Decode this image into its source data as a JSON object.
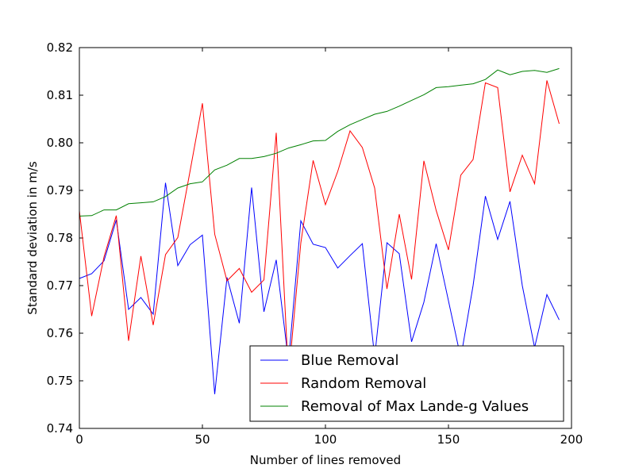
{
  "chart_data": {
    "type": "line",
    "title": "",
    "xlabel": "Number of lines removed",
    "ylabel": "Standard deviation in m/s",
    "xlim": [
      0,
      200
    ],
    "ylim": [
      0.74,
      0.82
    ],
    "xticks": [
      "0",
      "50",
      "100",
      "150",
      "200"
    ],
    "yticks": [
      "0.74",
      "0.75",
      "0.76",
      "0.77",
      "0.78",
      "0.79",
      "0.80",
      "0.81",
      "0.82"
    ],
    "grid": false,
    "legend_position": "lower-right",
    "x": [
      0,
      5,
      10,
      15,
      20,
      25,
      30,
      35,
      40,
      45,
      50,
      55,
      60,
      65,
      70,
      75,
      80,
      85,
      90,
      95,
      100,
      105,
      110,
      115,
      120,
      125,
      130,
      135,
      140,
      145,
      150,
      155,
      160,
      165,
      170,
      175,
      180,
      185,
      190,
      195
    ],
    "series": [
      {
        "name": "Blue Removal",
        "color": "#0000ff",
        "values": [
          0.7715,
          0.7725,
          0.7752,
          0.7838,
          0.765,
          0.7675,
          0.764,
          0.7916,
          0.7742,
          0.7786,
          0.7806,
          0.7472,
          0.7717,
          0.7621,
          0.7906,
          0.7645,
          0.7754,
          0.754,
          0.7836,
          0.7787,
          0.778,
          0.7737,
          0.7763,
          0.7788,
          0.755,
          0.779,
          0.7767,
          0.7582,
          0.7665,
          0.7788,
          0.7668,
          0.7548,
          0.77,
          0.7888,
          0.7797,
          0.7877,
          0.77,
          0.757,
          0.7681,
          0.7628
        ]
      },
      {
        "name": "Random Removal",
        "color": "#ff0000",
        "values": [
          0.7857,
          0.7636,
          0.776,
          0.7847,
          0.7584,
          0.7762,
          0.7617,
          0.7765,
          0.7801,
          0.7941,
          0.8083,
          0.7808,
          0.771,
          0.7736,
          0.7686,
          0.7712,
          0.8021,
          0.7508,
          0.779,
          0.7963,
          0.787,
          0.794,
          0.8025,
          0.799,
          0.7905,
          0.7693,
          0.785,
          0.7713,
          0.7962,
          0.7858,
          0.7775,
          0.7932,
          0.7965,
          0.8126,
          0.8116,
          0.7897,
          0.7974,
          0.7914,
          0.8131,
          0.804
        ]
      },
      {
        "name": "Removal of Max Lande-g Values",
        "color": "#008000",
        "values": [
          0.7846,
          0.7847,
          0.7859,
          0.7859,
          0.7872,
          0.7874,
          0.7876,
          0.7887,
          0.7905,
          0.7914,
          0.7918,
          0.7943,
          0.7953,
          0.7967,
          0.7967,
          0.7971,
          0.7978,
          0.7989,
          0.7996,
          0.8004,
          0.8005,
          0.8024,
          0.8038,
          0.8049,
          0.806,
          0.8066,
          0.8077,
          0.8089,
          0.8101,
          0.8116,
          0.8118,
          0.8121,
          0.8124,
          0.8133,
          0.8153,
          0.8143,
          0.815,
          0.8152,
          0.8148,
          0.8156
        ]
      }
    ]
  }
}
